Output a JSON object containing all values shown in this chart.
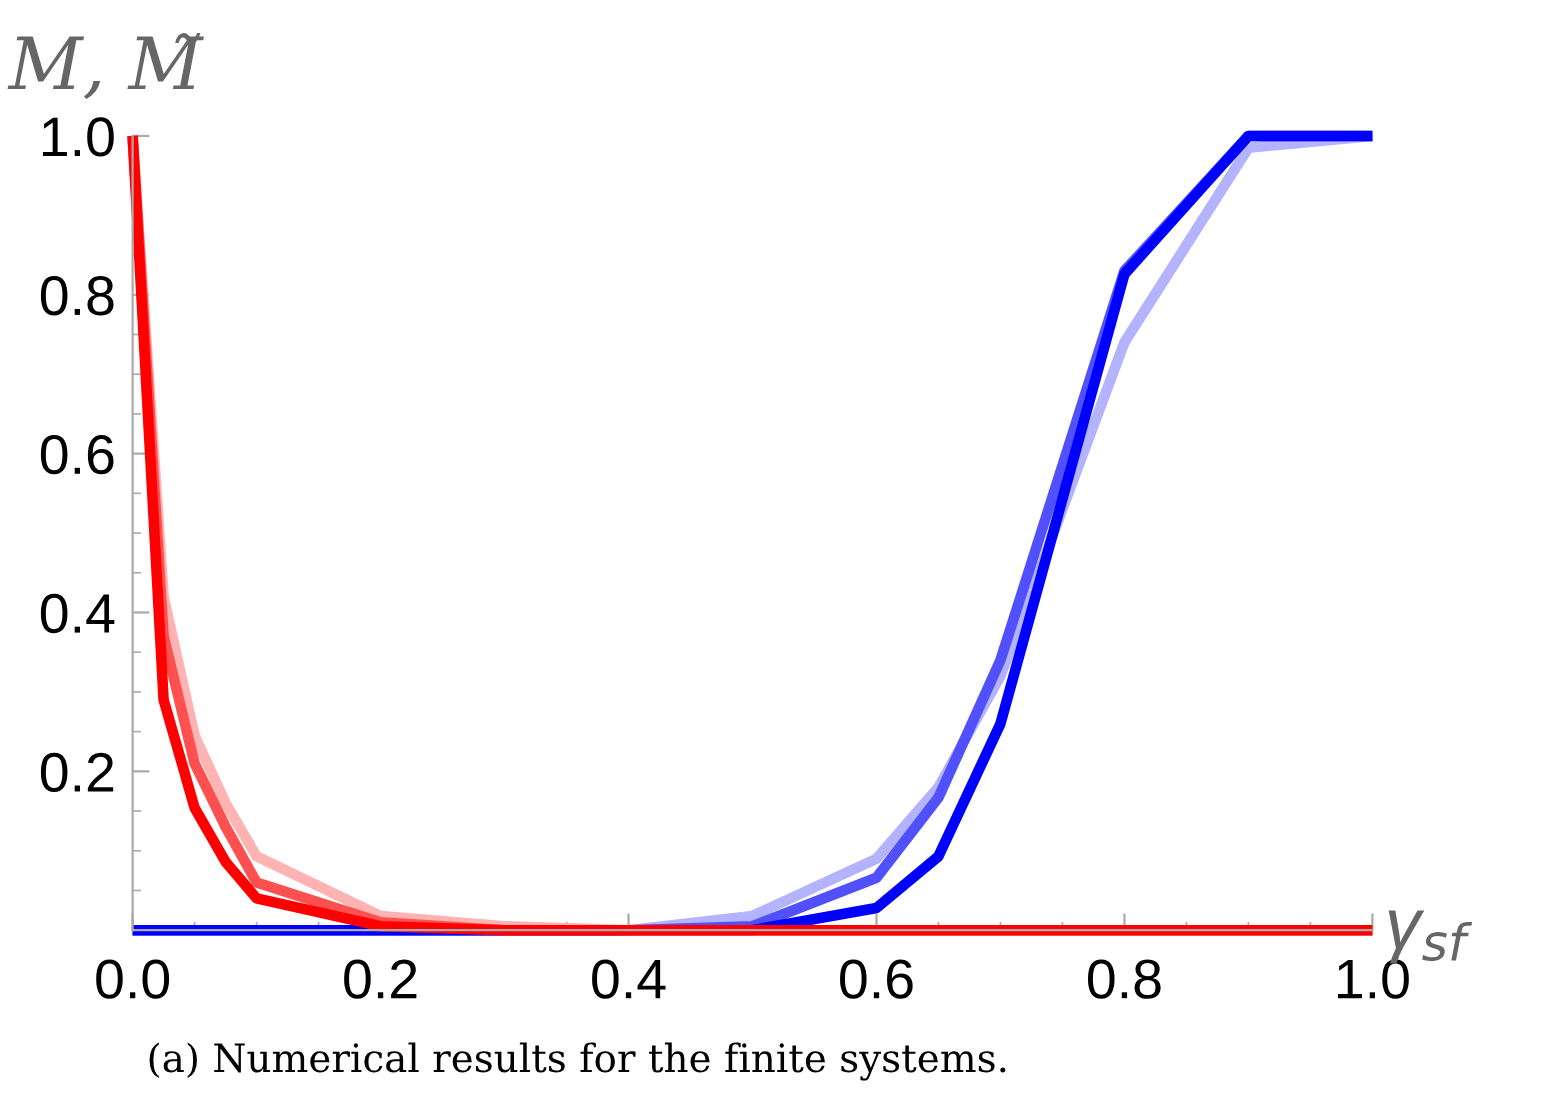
{
  "chart_data": {
    "type": "line",
    "xlabel": "γ$_{sf}$",
    "ylabel": "M, M̃",
    "annotations": [
      "(a) Numerical results for the finite systems."
    ],
    "xlim": [
      0,
      1.0
    ],
    "ylim": [
      0,
      1.0
    ],
    "xticks": [
      {
        "value": 0,
        "label": "0.0"
      },
      0.2,
      0.4,
      0.6,
      0.8,
      {
        "value": 1.0,
        "label": "1.0"
      }
    ],
    "yticks": [
      0.2,
      0.4,
      0.6,
      0.8,
      {
        "value": 1.0,
        "label": "1.0"
      }
    ],
    "grid": false,
    "marker": "none",
    "line_style": "solid",
    "series": [
      {
        "color": "#b3b3ff",
        "x": [
          0,
          0.1,
          0.2,
          0.3,
          0.4,
          0.5,
          0.6,
          0.65,
          0.7,
          0.8,
          0.9,
          1.0
        ],
        "values": [
          0,
          0,
          0,
          0,
          0,
          0.018,
          0.09,
          0.18,
          0.32,
          0.74,
          0.985,
          1.0
        ]
      },
      {
        "color": "#5050ff",
        "x": [
          0,
          0.1,
          0.2,
          0.3,
          0.4,
          0.5,
          0.6,
          0.65,
          0.7,
          0.8,
          0.9,
          1.0
        ],
        "values": [
          0,
          0,
          0,
          0,
          0,
          0.005,
          0.066,
          0.167,
          0.34,
          0.83,
          1.0,
          1.0
        ]
      },
      {
        "color": "#0000ff",
        "x": [
          0,
          0.1,
          0.2,
          0.3,
          0.4,
          0.5,
          0.6,
          0.65,
          0.7,
          0.8,
          0.9,
          1.0
        ],
        "values": [
          0,
          0,
          0,
          0,
          0,
          0,
          0.028,
          0.093,
          0.26,
          0.826,
          1.0,
          1.0
        ]
      },
      {
        "color": "#ffb3b3",
        "x": [
          0,
          0.025,
          0.05,
          0.075,
          0.1,
          0.2,
          0.3,
          0.4,
          0.5,
          0.6,
          0.7,
          0.8,
          0.9,
          1.0
        ],
        "values": [
          1.0,
          0.42,
          0.245,
          0.16,
          0.093,
          0.018,
          0.005,
          0,
          0,
          0,
          0,
          0,
          0,
          0
        ]
      },
      {
        "color": "#ff5050",
        "x": [
          0,
          0.025,
          0.05,
          0.075,
          0.1,
          0.2,
          0.3,
          0.4,
          0.5,
          0.6,
          0.7,
          0.8,
          0.9,
          1.0
        ],
        "values": [
          1.0,
          0.37,
          0.21,
          0.13,
          0.06,
          0.01,
          0,
          0,
          0,
          0,
          0,
          0,
          0,
          0
        ]
      },
      {
        "color": "#ff0000",
        "x": [
          0,
          0.025,
          0.05,
          0.075,
          0.1,
          0.2,
          0.3,
          0.4,
          0.5,
          0.6,
          0.7,
          0.8,
          0.9,
          1.0
        ],
        "values": [
          1.0,
          0.29,
          0.154,
          0.086,
          0.04,
          0.005,
          0,
          0,
          0,
          0,
          0,
          0,
          0,
          0
        ]
      }
    ]
  }
}
